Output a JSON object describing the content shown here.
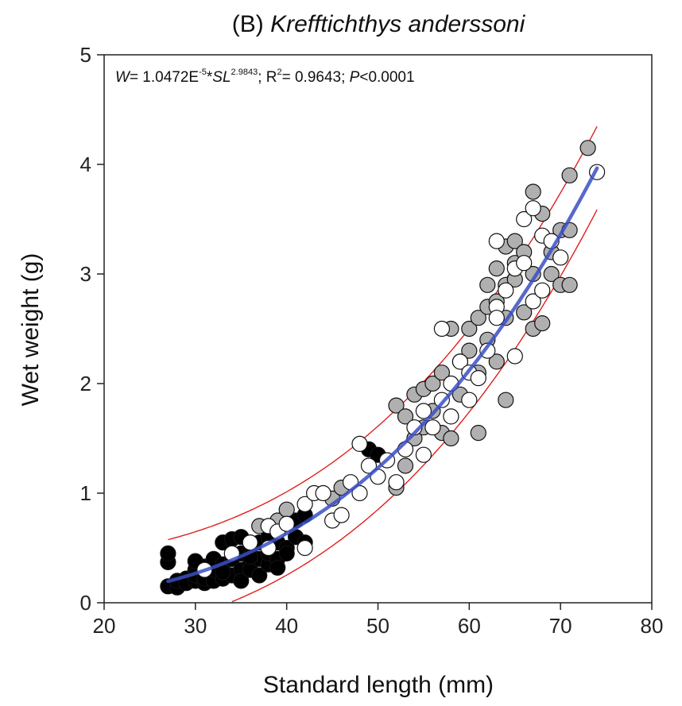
{
  "chart_data": {
    "type": "scatter",
    "title_prefix": "(B) ",
    "title_species": "Krefftichthys anderssoni",
    "equation": {
      "w_symbol": "W",
      "part1": "= 1.0472E",
      "exp1": "-5",
      "star": "*",
      "sl_symbol": "SL",
      "exp2": "2.9843",
      "part2": "; R",
      "r_exp": "2",
      "part3": "= 0.9643; ",
      "p_symbol": "P",
      "part4": "<0.0001"
    },
    "xlabel": "Standard length (mm)",
    "ylabel": "Wet weight (g)",
    "xlim": [
      20,
      80
    ],
    "ylim": [
      0,
      5
    ],
    "x_ticks": [
      20,
      30,
      40,
      50,
      60,
      70,
      80
    ],
    "y_ticks": [
      0,
      1,
      2,
      3,
      4,
      5
    ],
    "fit": {
      "a": 1.0472e-05,
      "b": 2.9843,
      "x_range": [
        27,
        74
      ],
      "color": "#3a4fc4"
    },
    "prediction_band": {
      "color": "#e02020",
      "lower_x_range": [
        34,
        74
      ],
      "upper_x_range": [
        27,
        74
      ],
      "offset": 0.38
    },
    "series": [
      {
        "fill": "#000000",
        "points": [
          [
            27,
            0.15
          ],
          [
            27,
            0.37
          ],
          [
            27,
            0.45
          ],
          [
            28,
            0.14
          ],
          [
            28,
            0.2
          ],
          [
            29,
            0.22
          ],
          [
            29,
            0.18
          ],
          [
            30,
            0.2
          ],
          [
            30,
            0.3
          ],
          [
            30,
            0.25
          ],
          [
            31,
            0.18
          ],
          [
            31,
            0.33
          ],
          [
            31,
            0.22
          ],
          [
            32,
            0.2
          ],
          [
            32,
            0.3
          ],
          [
            32,
            0.4
          ],
          [
            33,
            0.22
          ],
          [
            33,
            0.35
          ],
          [
            33,
            0.55
          ],
          [
            34,
            0.25
          ],
          [
            34,
            0.4
          ],
          [
            34,
            0.58
          ],
          [
            35,
            0.3
          ],
          [
            35,
            0.45
          ],
          [
            35,
            0.6
          ],
          [
            35,
            0.2
          ],
          [
            36,
            0.35
          ],
          [
            36,
            0.5
          ],
          [
            36,
            0.3
          ],
          [
            37,
            0.4
          ],
          [
            37,
            0.25
          ],
          [
            37,
            0.55
          ],
          [
            38,
            0.35
          ],
          [
            38,
            0.45
          ],
          [
            38,
            0.6
          ],
          [
            39,
            0.4
          ],
          [
            39,
            0.55
          ],
          [
            40,
            0.5
          ],
          [
            40,
            0.45
          ],
          [
            41,
            0.75
          ],
          [
            41,
            0.6
          ],
          [
            42,
            0.55
          ],
          [
            42,
            0.8
          ],
          [
            49,
            1.4
          ],
          [
            50,
            1.35
          ],
          [
            30,
            0.38
          ],
          [
            33,
            0.28
          ],
          [
            36,
            0.42
          ],
          [
            39,
            0.32
          ]
        ]
      },
      {
        "fill": "#b0b0b0",
        "points": [
          [
            37,
            0.7
          ],
          [
            39,
            0.75
          ],
          [
            40,
            0.85
          ],
          [
            45,
            0.95
          ],
          [
            46,
            1.05
          ],
          [
            52,
            1.05
          ],
          [
            52,
            1.8
          ],
          [
            53,
            1.7
          ],
          [
            53,
            1.25
          ],
          [
            54,
            1.9
          ],
          [
            54,
            1.5
          ],
          [
            55,
            1.95
          ],
          [
            55,
            1.6
          ],
          [
            56,
            1.75
          ],
          [
            56,
            2.0
          ],
          [
            57,
            2.1
          ],
          [
            57,
            1.55
          ],
          [
            58,
            2.5
          ],
          [
            58,
            1.5
          ],
          [
            59,
            2.2
          ],
          [
            59,
            1.9
          ],
          [
            60,
            2.3
          ],
          [
            60,
            2.5
          ],
          [
            61,
            2.6
          ],
          [
            61,
            1.55
          ],
          [
            61,
            2.1
          ],
          [
            62,
            2.7
          ],
          [
            62,
            2.4
          ],
          [
            62,
            2.9
          ],
          [
            63,
            2.75
          ],
          [
            63,
            3.05
          ],
          [
            63,
            2.2
          ],
          [
            64,
            2.9
          ],
          [
            64,
            3.25
          ],
          [
            64,
            2.6
          ],
          [
            64,
            1.85
          ],
          [
            65,
            3.3
          ],
          [
            65,
            3.1
          ],
          [
            65,
            2.95
          ],
          [
            66,
            2.65
          ],
          [
            66,
            3.2
          ],
          [
            67,
            3.75
          ],
          [
            67,
            3.0
          ],
          [
            67,
            2.5
          ],
          [
            68,
            3.55
          ],
          [
            68,
            2.55
          ],
          [
            69,
            3.2
          ],
          [
            69,
            3.0
          ],
          [
            70,
            3.4
          ],
          [
            70,
            2.9
          ],
          [
            71,
            3.9
          ],
          [
            71,
            3.4
          ],
          [
            71,
            2.9
          ],
          [
            73,
            4.15
          ]
        ]
      },
      {
        "fill": "#ffffff",
        "points": [
          [
            31,
            0.3
          ],
          [
            34,
            0.45
          ],
          [
            36,
            0.55
          ],
          [
            38,
            0.5
          ],
          [
            38,
            0.7
          ],
          [
            39,
            0.65
          ],
          [
            40,
            0.72
          ],
          [
            42,
            0.5
          ],
          [
            42,
            0.9
          ],
          [
            43,
            1.0
          ],
          [
            44,
            1.0
          ],
          [
            45,
            0.75
          ],
          [
            46,
            0.8
          ],
          [
            47,
            1.1
          ],
          [
            48,
            1.0
          ],
          [
            48,
            1.45
          ],
          [
            49,
            1.25
          ],
          [
            50,
            1.15
          ],
          [
            51,
            1.3
          ],
          [
            52,
            1.1
          ],
          [
            53,
            1.4
          ],
          [
            54,
            1.6
          ],
          [
            55,
            1.35
          ],
          [
            55,
            1.75
          ],
          [
            56,
            1.6
          ],
          [
            57,
            2.5
          ],
          [
            57,
            1.85
          ],
          [
            58,
            1.7
          ],
          [
            58,
            2.0
          ],
          [
            59,
            2.2
          ],
          [
            60,
            1.85
          ],
          [
            60,
            2.1
          ],
          [
            61,
            2.05
          ],
          [
            62,
            2.3
          ],
          [
            63,
            2.7
          ],
          [
            63,
            3.3
          ],
          [
            63,
            2.6
          ],
          [
            64,
            2.85
          ],
          [
            65,
            2.25
          ],
          [
            65,
            3.05
          ],
          [
            66,
            3.5
          ],
          [
            66,
            3.1
          ],
          [
            67,
            3.6
          ],
          [
            67,
            2.75
          ],
          [
            68,
            3.35
          ],
          [
            68,
            2.85
          ],
          [
            69,
            3.3
          ],
          [
            70,
            3.15
          ],
          [
            74,
            3.93
          ]
        ]
      }
    ]
  }
}
